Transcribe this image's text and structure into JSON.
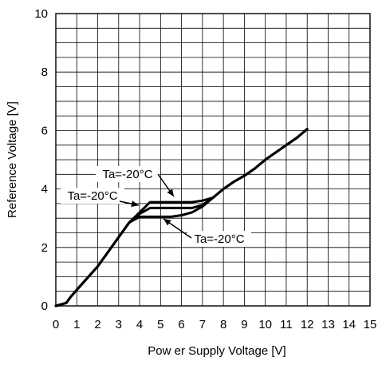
{
  "chart_data": {
    "type": "line",
    "title": "",
    "xlabel": "Pow er Supply Voltage [V]",
    "ylabel": "Reference Voltage [V]",
    "xlim": [
      0,
      15
    ],
    "ylim": [
      0,
      10
    ],
    "x_ticks": [
      "0",
      "1",
      "2",
      "3",
      "4",
      "5",
      "6",
      "7",
      "8",
      "9",
      "10",
      "11",
      "12",
      "13",
      "14",
      "15"
    ],
    "y_ticks": [
      "0",
      "2",
      "4",
      "6",
      "8",
      "10"
    ],
    "grid": true,
    "line_color": "#000000",
    "series": [
      {
        "x": [
          0,
          0.5,
          0.7,
          1,
          1.5,
          2,
          2.5,
          3,
          3.5,
          4,
          4.5,
          5,
          5.5,
          6,
          6.5,
          7,
          7.5,
          8,
          8.5,
          9,
          9.5,
          10,
          10.5,
          11,
          11.5,
          12
        ],
        "y": [
          0,
          0.1,
          0.3,
          0.55,
          0.95,
          1.35,
          1.85,
          2.35,
          2.85,
          3.2,
          3.55,
          3.55,
          3.55,
          3.55,
          3.55,
          3.6,
          3.7,
          4.0,
          4.25,
          4.45,
          4.7,
          5.0,
          5.25,
          5.5,
          5.75,
          6.05
        ]
      },
      {
        "x": [
          0,
          0.5,
          0.7,
          1,
          1.5,
          2,
          2.5,
          3,
          3.5,
          4,
          4.5,
          5,
          5.5,
          6,
          6.5,
          7,
          7.5,
          8,
          8.5,
          9,
          9.5,
          10,
          10.5,
          11,
          11.5,
          12
        ],
        "y": [
          0,
          0.1,
          0.3,
          0.55,
          0.95,
          1.35,
          1.85,
          2.35,
          2.85,
          3.15,
          3.35,
          3.35,
          3.35,
          3.35,
          3.35,
          3.45,
          3.7,
          4.0,
          4.25,
          4.45,
          4.7,
          5.0,
          5.25,
          5.5,
          5.75,
          6.05
        ]
      },
      {
        "x": [
          0,
          0.5,
          0.7,
          1,
          1.5,
          2,
          2.5,
          3,
          3.5,
          4,
          4.5,
          5,
          5.5,
          6,
          6.5,
          7,
          7.5,
          8,
          8.5,
          9,
          9.5,
          10,
          10.5,
          11,
          11.5,
          12
        ],
        "y": [
          0,
          0.1,
          0.3,
          0.55,
          0.95,
          1.35,
          1.85,
          2.35,
          2.85,
          3.05,
          3.05,
          3.05,
          3.05,
          3.1,
          3.2,
          3.4,
          3.7,
          4.0,
          4.25,
          4.45,
          4.7,
          5.0,
          5.25,
          5.5,
          5.75,
          6.05
        ]
      }
    ],
    "annotations": [
      {
        "text": "Ta=-20°C",
        "arrow_to": [
          5.4,
          3.55
        ]
      },
      {
        "text": "Ta=-20°C",
        "arrow_to": [
          4.2,
          3.25
        ]
      },
      {
        "text": "Ta=-20°C",
        "arrow_to": [
          5.0,
          3.05
        ]
      }
    ]
  }
}
